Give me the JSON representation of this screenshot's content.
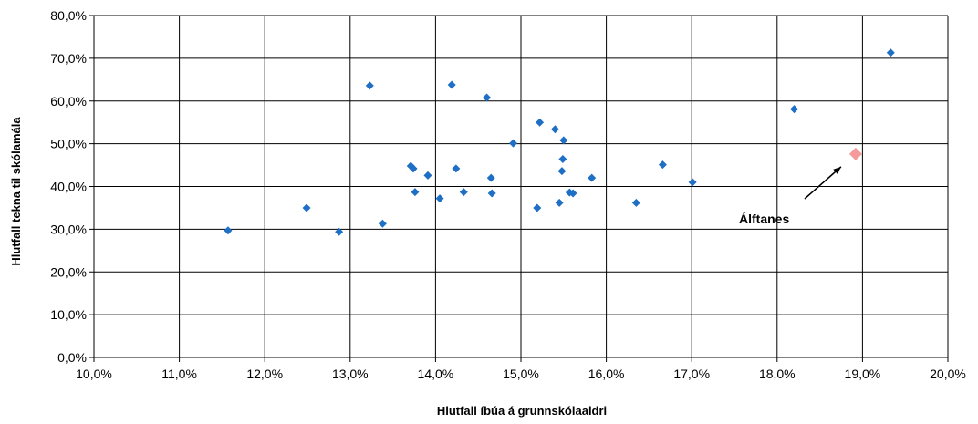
{
  "chart_data": {
    "type": "scatter",
    "xlabel": "Hlutfall íbúa á grunnskólaaldri",
    "ylabel": "Hlutfall tekna til skólamála",
    "xlim": [
      10,
      20
    ],
    "ylim": [
      0,
      80
    ],
    "x_ticks": [
      "10,0%",
      "11,0%",
      "12,0%",
      "13,0%",
      "14,0%",
      "15,0%",
      "16,0%",
      "17,0%",
      "18,0%",
      "19,0%",
      "20,0%"
    ],
    "y_ticks": [
      "0,0%",
      "10,0%",
      "20,0%",
      "30,0%",
      "40,0%",
      "50,0%",
      "60,0%",
      "70,0%",
      "80,0%"
    ],
    "grid": true,
    "colors": {
      "points": "#1f6fc5",
      "highlight": "#f59a9a",
      "grid": "#000000"
    },
    "series": [
      {
        "points": [
          [
            11.57,
            29.7
          ],
          [
            12.49,
            35.0
          ],
          [
            12.87,
            29.4
          ],
          [
            13.23,
            63.6
          ],
          [
            13.38,
            31.3
          ],
          [
            13.71,
            44.8
          ],
          [
            13.74,
            44.2
          ],
          [
            13.76,
            38.7
          ],
          [
            13.91,
            42.6
          ],
          [
            14.05,
            37.2
          ],
          [
            14.19,
            63.8
          ],
          [
            14.24,
            44.2
          ],
          [
            14.33,
            38.7
          ],
          [
            14.6,
            60.8
          ],
          [
            14.65,
            42.0
          ],
          [
            14.66,
            38.4
          ],
          [
            14.91,
            50.1
          ],
          [
            15.19,
            35.0
          ],
          [
            15.22,
            55.0
          ],
          [
            15.4,
            53.4
          ],
          [
            15.45,
            36.2
          ],
          [
            15.48,
            43.6
          ],
          [
            15.49,
            46.4
          ],
          [
            15.5,
            50.8
          ],
          [
            15.57,
            38.6
          ],
          [
            15.61,
            38.4
          ],
          [
            15.83,
            42.0
          ],
          [
            16.35,
            36.2
          ],
          [
            16.66,
            45.1
          ],
          [
            17.01,
            41.0
          ],
          [
            18.2,
            58.1
          ],
          [
            19.33,
            71.3
          ]
        ]
      },
      {
        "highlight": true,
        "points": [
          [
            18.92,
            47.6
          ]
        ]
      }
    ],
    "annotations": [
      {
        "text": "Álftanes",
        "target": [
          18.92,
          47.6
        ]
      }
    ]
  }
}
